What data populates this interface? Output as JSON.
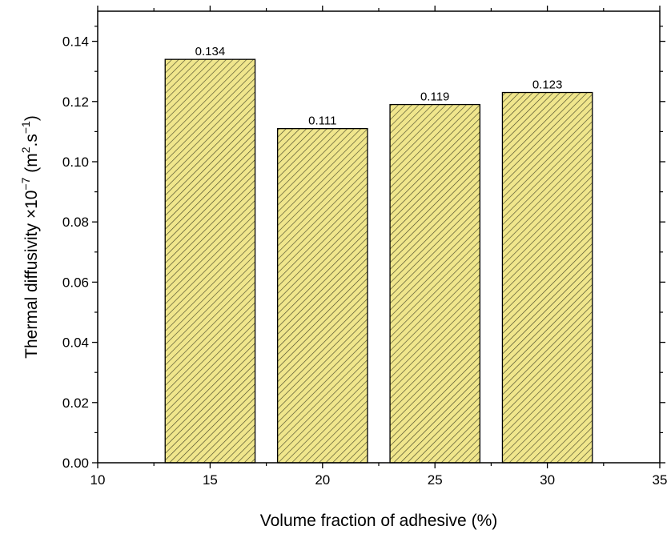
{
  "chart_data": {
    "type": "bar",
    "xlabel": "Volume fraction of adhesive (%)",
    "ylabel": {
      "text": "Thermal diffusivity ×10",
      "exponent": "−7",
      "units_open": " (m",
      "units_exp1": "2",
      "units_mid": ".s",
      "units_exp2": "−1",
      "units_close": ")"
    },
    "x": [
      15,
      20,
      25,
      30
    ],
    "values": [
      0.134,
      0.111,
      0.119,
      0.123
    ],
    "data_labels": [
      "0.134",
      "0.111",
      "0.119",
      "0.123"
    ],
    "bar_width_data_units": 4,
    "xlim": [
      10,
      35
    ],
    "ylim": [
      0,
      0.15
    ],
    "xticks": [
      10,
      15,
      20,
      25,
      30,
      35
    ],
    "xtick_labels": [
      "10",
      "15",
      "20",
      "25",
      "30",
      "35"
    ],
    "yticks": [
      0,
      0.02,
      0.04,
      0.06,
      0.08,
      0.1,
      0.12,
      0.14
    ],
    "ytick_labels": [
      "0.00",
      "0.02",
      "0.04",
      "0.06",
      "0.08",
      "0.10",
      "0.12",
      "0.14"
    ],
    "grid": false,
    "colors": {
      "bar_fill": "#f0e68c",
      "hatch": "#4a4a2a",
      "bar_edge": "#000000"
    }
  }
}
